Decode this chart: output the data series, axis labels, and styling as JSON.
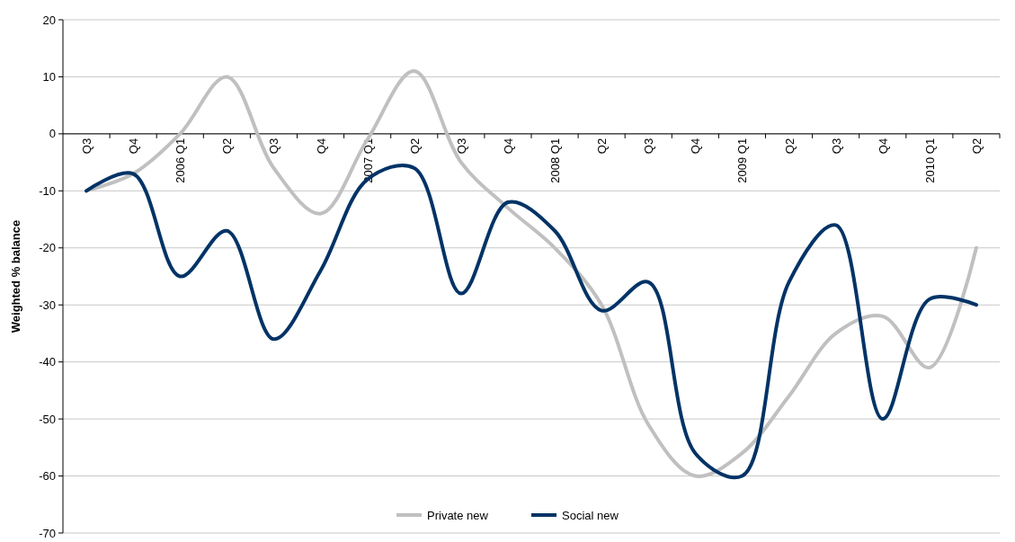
{
  "chart_data": {
    "type": "line",
    "ylabel": "Weighted % balance",
    "categories": [
      "Q3",
      "Q4",
      "2006 Q1",
      "Q2",
      "Q3",
      "Q4",
      "2007 Q1",
      "Q2",
      "Q3",
      "Q4",
      "2008 Q1",
      "Q2",
      "Q3",
      "Q4",
      "2009 Q1",
      "Q2",
      "Q3",
      "Q4",
      "2010 Q1",
      "Q2"
    ],
    "series": [
      {
        "name": "Private new",
        "color": "#c0c0c0",
        "values": [
          -10,
          -7,
          0,
          10,
          -6,
          -14,
          -1,
          11,
          -5,
          -13,
          -20,
          -30,
          -51,
          -60,
          -56,
          -46,
          -35,
          -32,
          -41,
          -20
        ]
      },
      {
        "name": "Social new",
        "color": "#003366",
        "values": [
          -10,
          -7,
          -25,
          -17,
          -36,
          -24,
          -8,
          -6,
          -28,
          -12,
          -17,
          -31,
          -26,
          -56,
          -60,
          -26,
          -16,
          -50,
          -29,
          -30
        ]
      }
    ],
    "ylim": [
      -70,
      20
    ],
    "yticks": [
      -70,
      -60,
      -50,
      -40,
      -30,
      -20,
      -10,
      0,
      10,
      20
    ],
    "grid": "y",
    "legend": "bottom",
    "marker": "none",
    "line_style": "solid"
  }
}
